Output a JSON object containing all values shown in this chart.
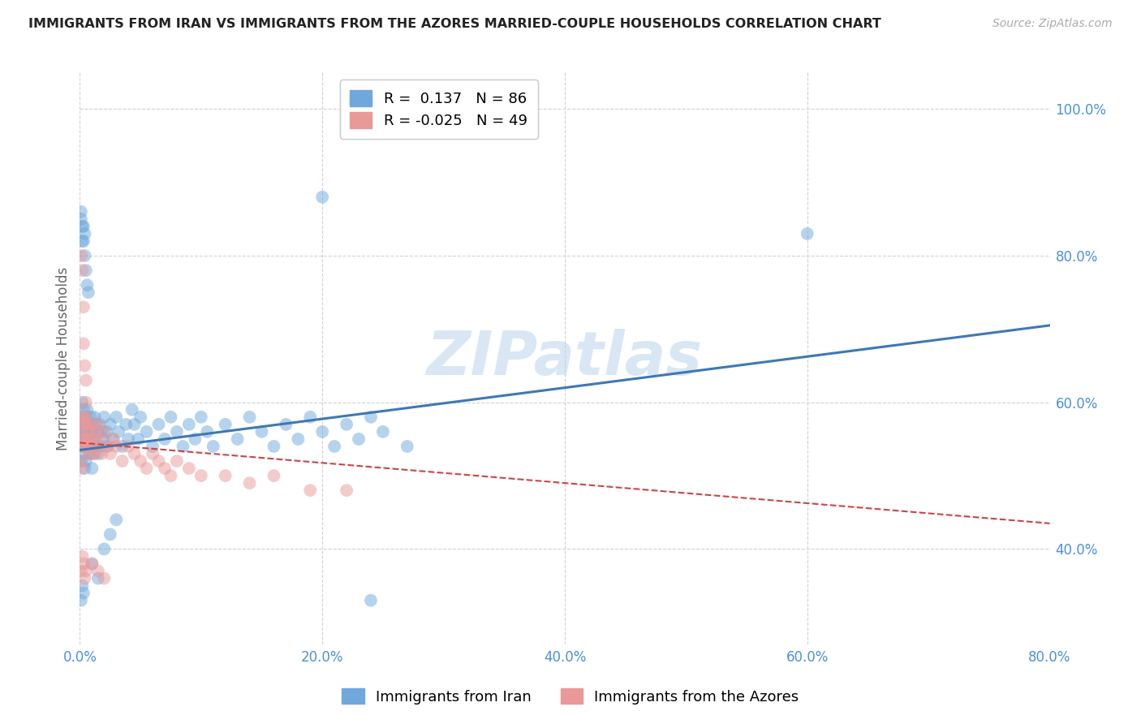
{
  "title": "IMMIGRANTS FROM IRAN VS IMMIGRANTS FROM THE AZORES MARRIED-COUPLE HOUSEHOLDS CORRELATION CHART",
  "source": "Source: ZipAtlas.com",
  "ylabel": "Married-couple Households",
  "legend_label_blue": "Immigrants from Iran",
  "legend_label_pink": "Immigrants from the Azores",
  "R_blue": 0.137,
  "N_blue": 86,
  "R_pink": -0.025,
  "N_pink": 49,
  "xlim": [
    0.0,
    0.8
  ],
  "ylim": [
    0.27,
    1.05
  ],
  "yticks": [
    0.4,
    0.6,
    0.8,
    1.0
  ],
  "xticks": [
    0.0,
    0.2,
    0.4,
    0.6,
    0.8
  ],
  "color_blue": "#6fa8dc",
  "color_pink": "#ea9999",
  "trend_blue": "#3d78b5",
  "trend_pink": "#cc4444",
  "watermark": "ZIPatlas",
  "watermark_color": "#b8d4ea",
  "blue_trend_start_y": 0.535,
  "blue_trend_end_y": 0.705,
  "pink_trend_start_y": 0.545,
  "pink_trend_end_y": 0.435,
  "blue_x": [
    0.001,
    0.001,
    0.001,
    0.001,
    0.002,
    0.002,
    0.002,
    0.003,
    0.003,
    0.003,
    0.004,
    0.004,
    0.004,
    0.005,
    0.005,
    0.005,
    0.006,
    0.006,
    0.007,
    0.007,
    0.008,
    0.008,
    0.009,
    0.009,
    0.01,
    0.01,
    0.01,
    0.011,
    0.011,
    0.012,
    0.012,
    0.013,
    0.014,
    0.015,
    0.015,
    0.016,
    0.017,
    0.018,
    0.019,
    0.02,
    0.022,
    0.023,
    0.025,
    0.027,
    0.03,
    0.032,
    0.035,
    0.038,
    0.04,
    0.043,
    0.045,
    0.048,
    0.05,
    0.055,
    0.06,
    0.065,
    0.07,
    0.075,
    0.08,
    0.085,
    0.09,
    0.095,
    0.1,
    0.105,
    0.11,
    0.12,
    0.13,
    0.14,
    0.15,
    0.16,
    0.17,
    0.18,
    0.19,
    0.2,
    0.21,
    0.22,
    0.23,
    0.24,
    0.25,
    0.27,
    0.001,
    0.002,
    0.003,
    0.004,
    0.2,
    0.6
  ],
  "blue_y": [
    0.55,
    0.58,
    0.52,
    0.56,
    0.54,
    0.57,
    0.6,
    0.53,
    0.56,
    0.59,
    0.54,
    0.57,
    0.51,
    0.55,
    0.58,
    0.52,
    0.56,
    0.59,
    0.54,
    0.57,
    0.53,
    0.56,
    0.55,
    0.58,
    0.54,
    0.57,
    0.51,
    0.56,
    0.53,
    0.55,
    0.58,
    0.57,
    0.54,
    0.56,
    0.53,
    0.57,
    0.54,
    0.56,
    0.55,
    0.58,
    0.56,
    0.54,
    0.57,
    0.55,
    0.58,
    0.56,
    0.54,
    0.57,
    0.55,
    0.59,
    0.57,
    0.55,
    0.58,
    0.56,
    0.54,
    0.57,
    0.55,
    0.58,
    0.56,
    0.54,
    0.57,
    0.55,
    0.58,
    0.56,
    0.54,
    0.57,
    0.55,
    0.58,
    0.56,
    0.54,
    0.57,
    0.55,
    0.58,
    0.56,
    0.54,
    0.57,
    0.55,
    0.58,
    0.56,
    0.54,
    0.85,
    0.82,
    0.84,
    0.83,
    0.88,
    0.83
  ],
  "pink_x": [
    0.001,
    0.001,
    0.001,
    0.001,
    0.002,
    0.002,
    0.002,
    0.003,
    0.003,
    0.004,
    0.004,
    0.005,
    0.005,
    0.006,
    0.006,
    0.007,
    0.008,
    0.008,
    0.009,
    0.01,
    0.011,
    0.012,
    0.013,
    0.014,
    0.015,
    0.016,
    0.018,
    0.02,
    0.022,
    0.025,
    0.028,
    0.03,
    0.035,
    0.04,
    0.045,
    0.05,
    0.055,
    0.06,
    0.065,
    0.07,
    0.075,
    0.08,
    0.09,
    0.1,
    0.12,
    0.14,
    0.16,
    0.19,
    0.22
  ],
  "pink_y": [
    0.55,
    0.58,
    0.52,
    0.56,
    0.54,
    0.57,
    0.51,
    0.55,
    0.58,
    0.54,
    0.57,
    0.55,
    0.58,
    0.54,
    0.57,
    0.55,
    0.53,
    0.56,
    0.54,
    0.57,
    0.55,
    0.53,
    0.56,
    0.54,
    0.57,
    0.55,
    0.53,
    0.56,
    0.54,
    0.53,
    0.55,
    0.54,
    0.52,
    0.54,
    0.53,
    0.52,
    0.51,
    0.53,
    0.52,
    0.51,
    0.5,
    0.52,
    0.51,
    0.5,
    0.5,
    0.49,
    0.5,
    0.48,
    0.48
  ],
  "extra_pink_high_x": [
    0.001,
    0.002,
    0.003,
    0.003,
    0.004,
    0.005,
    0.005
  ],
  "extra_pink_high_y": [
    0.8,
    0.78,
    0.73,
    0.68,
    0.65,
    0.63,
    0.6
  ],
  "extra_pink_low_x": [
    0.001,
    0.002,
    0.003,
    0.004,
    0.005,
    0.01,
    0.015,
    0.02
  ],
  "extra_pink_low_y": [
    0.37,
    0.39,
    0.38,
    0.36,
    0.37,
    0.38,
    0.37,
    0.36
  ],
  "extra_blue_high_x": [
    0.001,
    0.002,
    0.003,
    0.004,
    0.005,
    0.006,
    0.007
  ],
  "extra_blue_high_y": [
    0.86,
    0.84,
    0.82,
    0.8,
    0.78,
    0.76,
    0.75
  ],
  "extra_blue_low_x": [
    0.001,
    0.002,
    0.003,
    0.01,
    0.015,
    0.02,
    0.025,
    0.03,
    0.24
  ],
  "extra_blue_low_y": [
    0.33,
    0.35,
    0.34,
    0.38,
    0.36,
    0.4,
    0.42,
    0.44,
    0.33
  ]
}
